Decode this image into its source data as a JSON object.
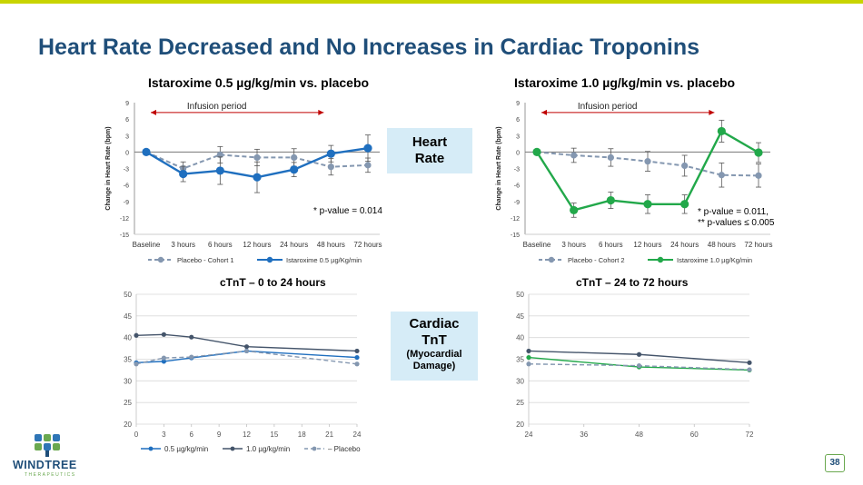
{
  "page": {
    "title": "Heart Rate Decreased and No Increases in Cardiac Troponins",
    "page_number": "38",
    "logo": {
      "name": "WINDTREE",
      "sub": "THERAPEUTICS"
    },
    "heart_rate_box": {
      "line1": "Heart",
      "line2": "Rate"
    },
    "cardiac_box": {
      "line1": "Cardiac",
      "line2": "TnT",
      "line3": "(Myocardial",
      "line4": "Damage)"
    },
    "colors": {
      "title": "#1f4e79",
      "placebo": "#8497b0",
      "dose_05": "#1f6fbf",
      "dose_10": "#22a84a",
      "dark_series": "#44546a"
    }
  },
  "chart_data": [
    {
      "id": "hr1",
      "type": "line",
      "title": "Istaroxime 0.5 µg/kg/min vs. placebo",
      "ylabel": "Change in Heart Rate (bpm)",
      "xlabel": "",
      "categories": [
        "Baseline",
        "3 hours",
        "6 hours",
        "12 hours",
        "24 hours",
        "48 hours",
        "72 hours"
      ],
      "ylim": [
        -15,
        9
      ],
      "yticks": [
        -15,
        -12,
        -9,
        -6,
        -3,
        0,
        3,
        6,
        9
      ],
      "annotation": "Infusion period",
      "note": [
        "* p-value = 0.014"
      ],
      "series": [
        {
          "name": "Placebo - Cohort 1",
          "values": [
            0,
            -3,
            -0.5,
            -1,
            -1,
            -2.7,
            -2.4
          ],
          "err": [
            0,
            1.2,
            1.5,
            1.5,
            1.6,
            1.5,
            1.3
          ],
          "style": "dashed"
        },
        {
          "name": "Istaroxime 0.5 µg/Kg/min",
          "values": [
            0,
            -4,
            -3.4,
            -4.6,
            -3.2,
            -0.3,
            0.7
          ],
          "err": [
            0,
            1.4,
            2.5,
            2.8,
            1.3,
            1.5,
            2.4
          ],
          "style": "solid"
        }
      ]
    },
    {
      "id": "hr2",
      "type": "line",
      "title": "Istaroxime 1.0 µg/kg/min vs. placebo",
      "ylabel": "Change in Heart Rate (bpm)",
      "xlabel": "",
      "categories": [
        "Baseline",
        "3 hours",
        "6 hours",
        "12 hours",
        "24 hours",
        "48 hours",
        "72 hours"
      ],
      "ylim": [
        -15,
        9
      ],
      "yticks": [
        -15,
        -12,
        -9,
        -6,
        -3,
        0,
        3,
        6,
        9
      ],
      "annotation": "Infusion period",
      "note": [
        "* p-value = 0.011,",
        "** p-values ≤ 0.005"
      ],
      "series": [
        {
          "name": "Placebo - Cohort 2",
          "values": [
            0,
            -0.6,
            -1,
            -1.7,
            -2.5,
            -4.2,
            -4.3
          ],
          "err": [
            0,
            1.3,
            1.6,
            1.8,
            1.9,
            2.2,
            2.1
          ],
          "style": "dashed"
        },
        {
          "name": "Istaroxime 1.0 µg/Kg/min",
          "values": [
            0,
            -10.6,
            -8.8,
            -9.5,
            -9.5,
            3.8,
            -0.1
          ],
          "err": [
            0,
            1.3,
            1.5,
            1.7,
            1.7,
            2.0,
            1.8
          ],
          "style": "solid"
        }
      ]
    },
    {
      "id": "tnt1",
      "type": "line",
      "title": "cTnT – 0 to 24 hours",
      "xlabel": "",
      "ylabel": "",
      "x": [
        0,
        3,
        6,
        12,
        24
      ],
      "xticks": [
        0,
        3,
        6,
        9,
        12,
        15,
        18,
        21,
        24
      ],
      "xlim": [
        0,
        24
      ],
      "ylim": [
        20,
        50
      ],
      "yticks": [
        20,
        25,
        30,
        35,
        40,
        45,
        50
      ],
      "series": [
        {
          "name": "0.5 µg/kg/min",
          "values": [
            34.2,
            34.5,
            35.3,
            36.9,
            35.4
          ],
          "style": "solid"
        },
        {
          "name": "1.0 µg/kg/min",
          "values": [
            40.5,
            40.7,
            40.1,
            37.9,
            36.9
          ],
          "style": "solid"
        },
        {
          "name": "– Placebo",
          "values": [
            33.9,
            35.3,
            35.5,
            36.9,
            33.9
          ],
          "style": "dashed"
        }
      ]
    },
    {
      "id": "tnt2",
      "type": "line",
      "title": "cTnT – 24 to 72 hours",
      "xlabel": "",
      "ylabel": "",
      "x": [
        24,
        48,
        72
      ],
      "xticks": [
        24,
        36,
        48,
        60,
        72
      ],
      "xlim": [
        24,
        72
      ],
      "ylim": [
        20,
        50
      ],
      "yticks": [
        20,
        25,
        30,
        35,
        40,
        45,
        50
      ],
      "series": [
        {
          "name": "dark",
          "values": [
            36.9,
            36.1,
            34.2
          ],
          "style": "solid"
        },
        {
          "name": "green",
          "values": [
            35.4,
            33.2,
            32.5
          ],
          "style": "solid"
        },
        {
          "name": "placebo",
          "values": [
            33.9,
            33.5,
            32.6
          ],
          "style": "dashed"
        }
      ]
    }
  ]
}
